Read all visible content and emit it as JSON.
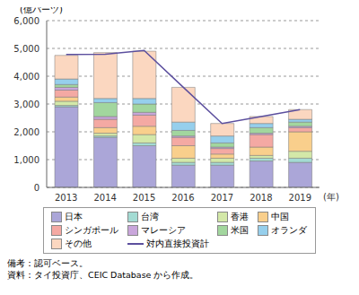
{
  "chart_data": {
    "type": "bar",
    "stacked": true,
    "grid": true,
    "legend": "bottom",
    "y_label": "(億バーツ)",
    "x_label": "(年)",
    "categories": [
      "2013",
      "2014",
      "2015",
      "2016",
      "2017",
      "2018",
      "2019"
    ],
    "ylim": [
      0,
      6000
    ],
    "yticks": [
      0,
      {
        "value": 1000,
        "label": "1,000"
      },
      {
        "value": 2000,
        "label": "2,000"
      },
      {
        "value": 3000,
        "label": "3,000"
      },
      {
        "value": 4000,
        "label": "4,000"
      },
      {
        "value": 5000,
        "label": "5,000"
      },
      {
        "value": 6000,
        "label": "6,000"
      }
    ],
    "series": [
      {
        "name": "日本",
        "color": "#aba6d8",
        "type": "bar",
        "values": [
          2900,
          1800,
          1500,
          800,
          800,
          950,
          900
        ]
      },
      {
        "name": "台湾",
        "color": "#a3dbd3",
        "type": "bar",
        "values": [
          50,
          50,
          100,
          100,
          100,
          100,
          150
        ]
      },
      {
        "name": "香港",
        "color": "#d3e8a8",
        "type": "bar",
        "values": [
          150,
          100,
          300,
          150,
          150,
          100,
          250
        ]
      },
      {
        "name": "中国",
        "color": "#f9cf8c",
        "type": "bar",
        "values": [
          150,
          200,
          300,
          450,
          150,
          300,
          700
        ]
      },
      {
        "name": "シンガポール",
        "color": "#f4a9a3",
        "type": "bar",
        "values": [
          250,
          300,
          400,
          300,
          200,
          450,
          150
        ]
      },
      {
        "name": "マレーシア",
        "color": "#c9a6db",
        "type": "bar",
        "values": [
          100,
          100,
          100,
          50,
          50,
          50,
          50
        ]
      },
      {
        "name": "米国",
        "color": "#a2d69e",
        "type": "bar",
        "values": [
          100,
          500,
          300,
          200,
          150,
          200,
          150
        ]
      },
      {
        "name": "オランダ",
        "color": "#96cfec",
        "type": "bar",
        "values": [
          200,
          150,
          200,
          300,
          250,
          150,
          100
        ]
      },
      {
        "name": "その他",
        "color": "#fbd7c0",
        "type": "bar",
        "values": [
          850,
          1650,
          1700,
          1250,
          450,
          250,
          350
        ]
      },
      {
        "name": "対内直接投資計",
        "color": "#5c4f9e",
        "type": "line",
        "values": [
          4780,
          4790,
          4930,
          3610,
          2300,
          2550,
          2800
        ]
      }
    ],
    "notes": [
      "備考：認可ベース。",
      "資料：タイ投資庁、CEIC Database から作成。"
    ]
  }
}
